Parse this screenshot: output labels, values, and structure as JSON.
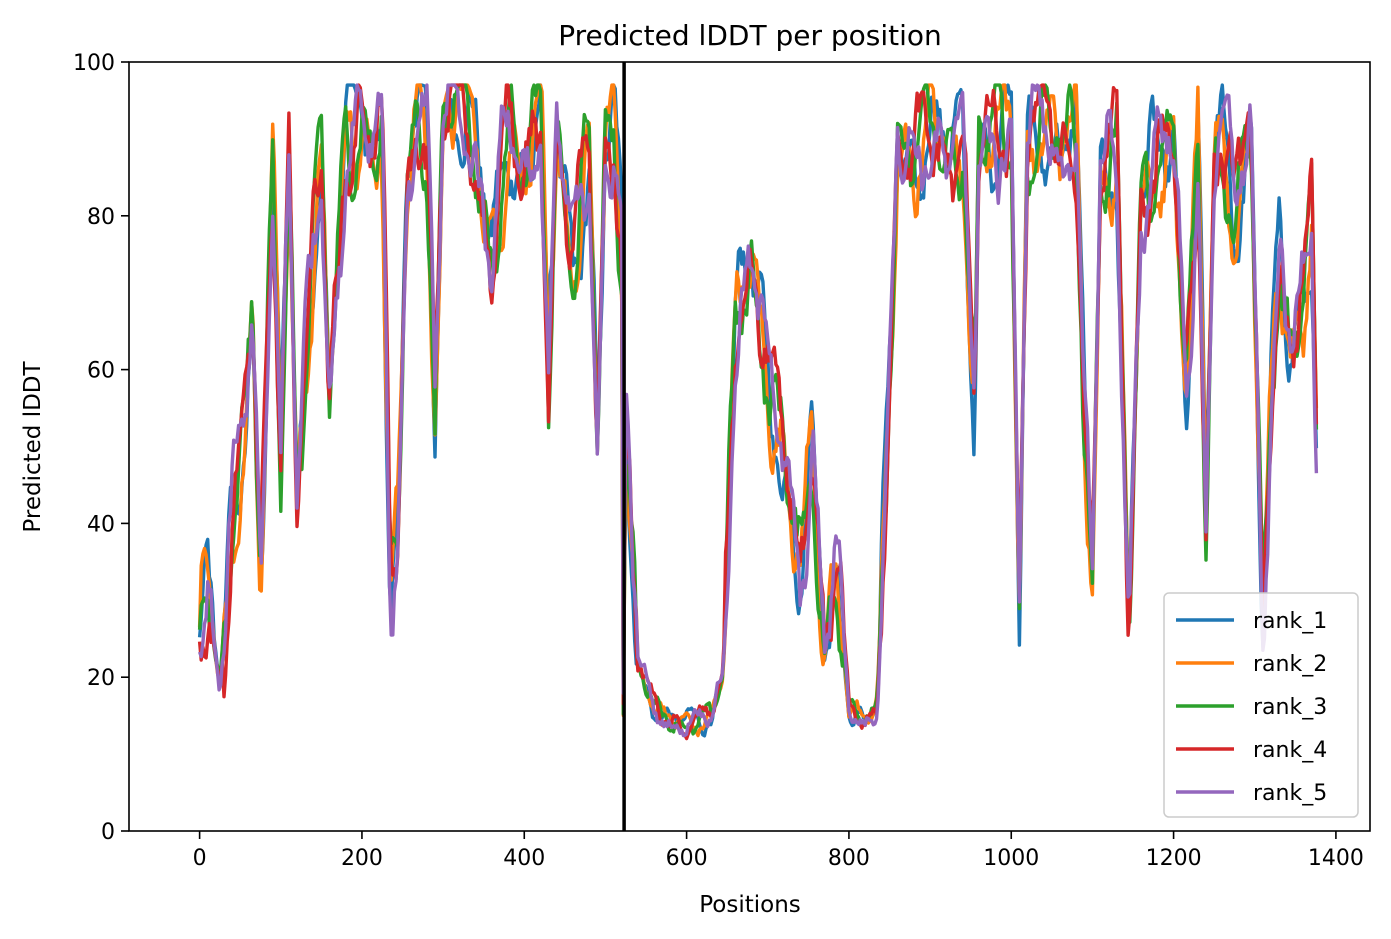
{
  "chart_data": {
    "type": "line",
    "title": "Predicted lDDT per position",
    "xlabel": "Positions",
    "ylabel": "Predicted lDDT",
    "xlim": [
      -87,
      1442
    ],
    "ylim": [
      0,
      100
    ],
    "xticks": [
      0,
      200,
      400,
      600,
      800,
      1000,
      1200,
      1400
    ],
    "yticks": [
      0,
      20,
      40,
      60,
      80,
      100
    ],
    "grid": false,
    "legend_position": "lower right",
    "chain_break_x": 523,
    "series": [
      {
        "name": "rank_1",
        "color": "#1f77b4"
      },
      {
        "name": "rank_2",
        "color": "#ff7f0e"
      },
      {
        "name": "rank_3",
        "color": "#2ca02c"
      },
      {
        "name": "rank_4",
        "color": "#d62728"
      },
      {
        "name": "rank_5",
        "color": "#9467bd"
      }
    ],
    "base_profile": {
      "x": [
        0,
        10,
        25,
        40,
        55,
        65,
        75,
        90,
        100,
        110,
        120,
        135,
        150,
        160,
        180,
        200,
        215,
        225,
        235,
        245,
        255,
        270,
        280,
        290,
        300,
        320,
        340,
        360,
        380,
        400,
        420,
        430,
        440,
        460,
        480,
        490,
        500,
        510,
        520,
        522,
        525,
        540,
        560,
        580,
        600,
        630,
        645,
        660,
        680,
        700,
        720,
        740,
        755,
        770,
        785,
        800,
        820,
        835,
        845,
        860,
        880,
        900,
        920,
        940,
        955,
        960,
        980,
        1000,
        1010,
        1020,
        1040,
        1060,
        1080,
        1090,
        1100,
        1110,
        1130,
        1145,
        1160,
        1180,
        1200,
        1215,
        1230,
        1240,
        1250,
        1260,
        1275,
        1295,
        1310,
        1320,
        1330,
        1345,
        1360,
        1370,
        1376
      ],
      "y": [
        25,
        30,
        19,
        40,
        52,
        68,
        30,
        85,
        50,
        88,
        45,
        68,
        88,
        55,
        90,
        94,
        88,
        92,
        30,
        40,
        82,
        95,
        90,
        55,
        92,
        96,
        88,
        75,
        92,
        85,
        93,
        58,
        92,
        72,
        88,
        50,
        88,
        92,
        75,
        17,
        55,
        22,
        16,
        14,
        14,
        15,
        20,
        65,
        75,
        60,
        48,
        33,
        50,
        23,
        35,
        16,
        14,
        16,
        45,
        90,
        85,
        92,
        88,
        90,
        55,
        88,
        90,
        92,
        30,
        90,
        92,
        88,
        90,
        55,
        35,
        85,
        88,
        25,
        82,
        88,
        90,
        55,
        88,
        40,
        88,
        92,
        80,
        92,
        25,
        55,
        75,
        62,
        70,
        80,
        50
      ]
    }
  }
}
